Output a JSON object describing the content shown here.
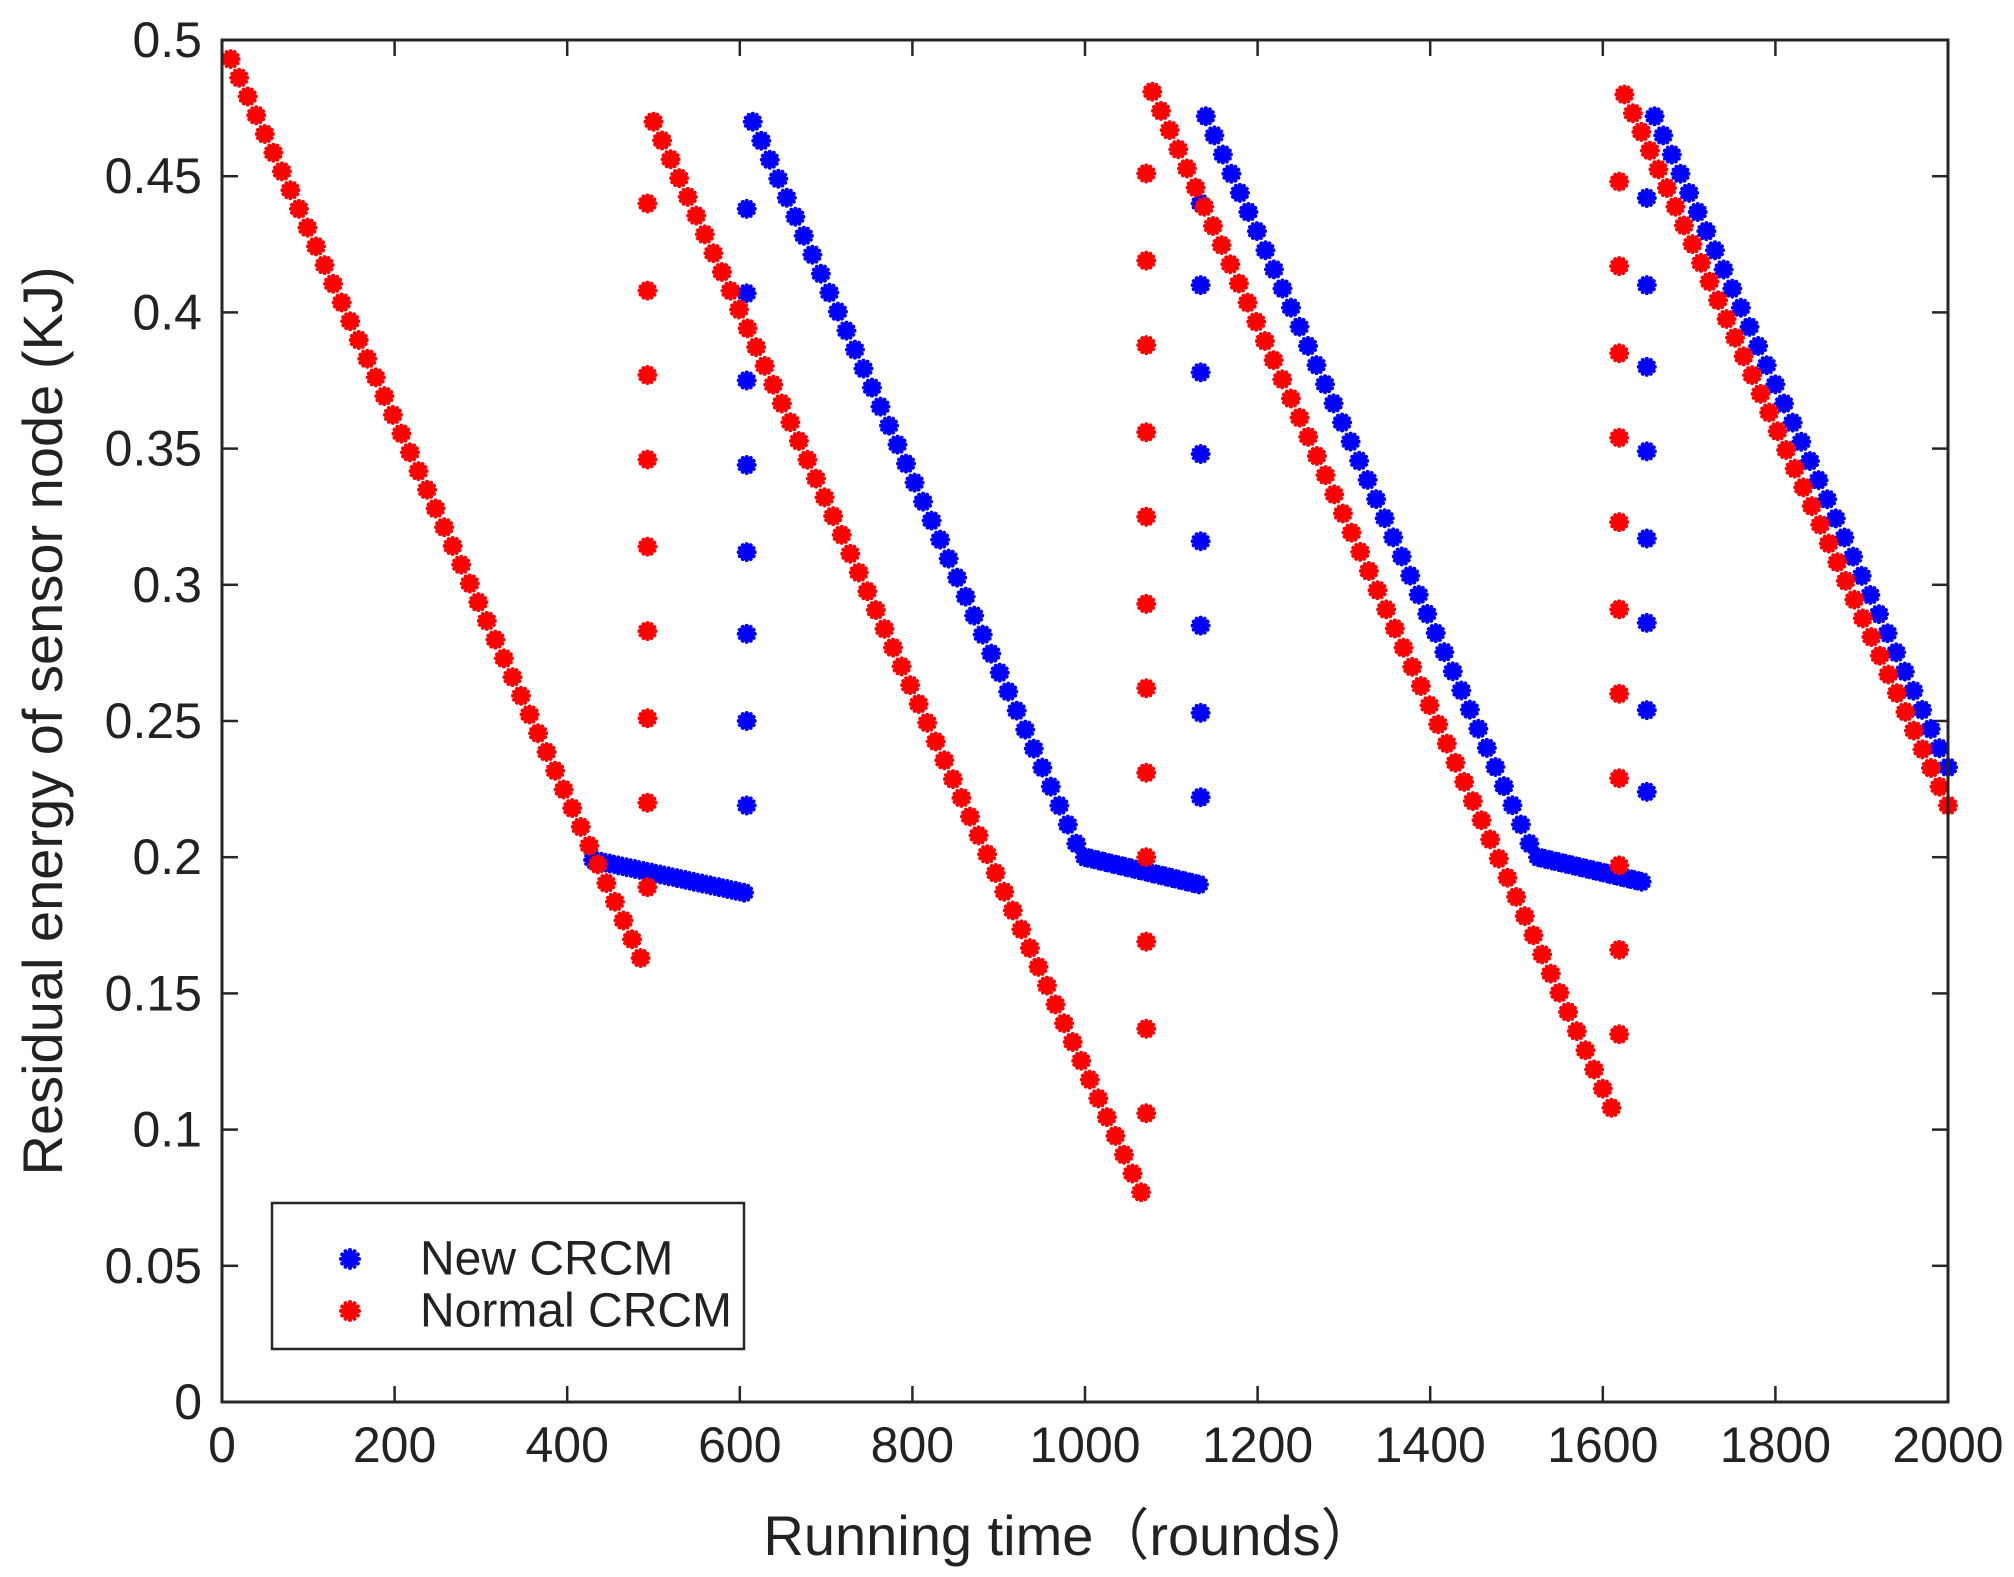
{
  "chart_data": {
    "type": "scatter",
    "title": "",
    "xlabel": "Running time（rounds）",
    "ylabel": "Residual energy of sensor node (KJ)",
    "xlim": [
      0,
      2000
    ],
    "ylim": [
      0,
      0.5
    ],
    "xticks": [
      0,
      200,
      400,
      600,
      800,
      1000,
      1200,
      1400,
      1600,
      1800,
      2000
    ],
    "xtick_labels": [
      "0",
      "200",
      "400",
      "600",
      "800",
      "1000",
      "1200",
      "1400",
      "1600",
      "1800",
      "2000"
    ],
    "yticks": [
      0,
      0.05,
      0.1,
      0.15,
      0.2,
      0.25,
      0.3,
      0.35,
      0.4,
      0.45,
      0.5
    ],
    "ytick_labels": [
      "0",
      "0.05",
      "0.1",
      "0.15",
      "0.2",
      "0.25",
      "0.3",
      "0.35",
      "0.4",
      "0.45",
      "0.5"
    ],
    "grid": false,
    "legend_position": "bottom-left",
    "series": [
      {
        "name": "New CRCM",
        "color": "#0000ff",
        "marker": "asterisk",
        "segments": [
          {
            "x_start": 430,
            "x_end": 605,
            "y_start": 0.199,
            "y_end": 0.187,
            "step": 10
          },
          {
            "x_vertical": 608,
            "y_values": [
              0.219,
              0.25,
              0.282,
              0.312,
              0.344,
              0.375,
              0.407,
              0.438
            ]
          },
          {
            "x_start": 615,
            "x_end": 990,
            "y_start": 0.47,
            "y_end": 0.205,
            "step": 10
          },
          {
            "x_start": 1000,
            "x_end": 1132,
            "y_start": 0.2,
            "y_end": 0.19,
            "step": 8
          },
          {
            "x_vertical": 1134,
            "y_values": [
              0.222,
              0.253,
              0.285,
              0.316,
              0.348,
              0.378,
              0.41,
              0.44
            ]
          },
          {
            "x_start": 1140,
            "x_end": 1515,
            "y_start": 0.472,
            "y_end": 0.205,
            "step": 10
          },
          {
            "x_start": 1525,
            "x_end": 1645,
            "y_start": 0.2,
            "y_end": 0.191,
            "step": 8
          },
          {
            "x_vertical": 1651,
            "y_values": [
              0.224,
              0.254,
              0.286,
              0.317,
              0.349,
              0.38,
              0.41,
              0.442
            ]
          },
          {
            "x_start": 1660,
            "x_end": 2000,
            "y_start": 0.472,
            "y_end": 0.233,
            "step": 10
          }
        ]
      },
      {
        "name": "Normal CRCM",
        "color": "#ff0000",
        "marker": "asterisk",
        "segments": [
          {
            "x_start": 10,
            "x_end": 485,
            "y_start": 0.493,
            "y_end": 0.163,
            "step": 10
          },
          {
            "x_vertical": 493,
            "y_values": [
              0.189,
              0.22,
              0.251,
              0.283,
              0.314,
              0.346,
              0.377,
              0.408,
              0.44
            ]
          },
          {
            "x_start": 500,
            "x_end": 1065,
            "y_start": 0.47,
            "y_end": 0.077,
            "step": 10
          },
          {
            "x_vertical": 1071,
            "y_values": [
              0.106,
              0.137,
              0.169,
              0.2,
              0.231,
              0.262,
              0.293,
              0.325,
              0.356,
              0.388,
              0.419,
              0.451
            ]
          },
          {
            "x_start": 1078,
            "x_end": 1610,
            "y_start": 0.481,
            "y_end": 0.108,
            "step": 10
          },
          {
            "x_vertical": 1619,
            "y_values": [
              0.135,
              0.166,
              0.197,
              0.229,
              0.26,
              0.291,
              0.323,
              0.354,
              0.385,
              0.417,
              0.448
            ]
          },
          {
            "x_start": 1625,
            "x_end": 2000,
            "y_start": 0.48,
            "y_end": 0.219,
            "step": 10
          }
        ]
      }
    ]
  }
}
